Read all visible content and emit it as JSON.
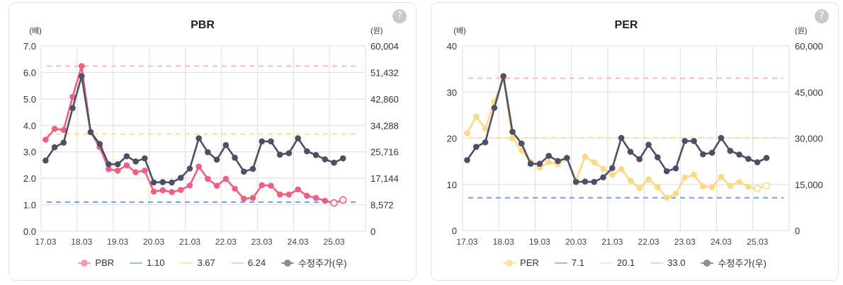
{
  "chart_data": [
    {
      "type": "line",
      "title": "PBR",
      "left_axis_unit": "(배)",
      "right_axis_unit": "(원)",
      "help_icon": {
        "name": "question-icon",
        "glyph": "?"
      },
      "x_tick_labels": [
        "17.03",
        "18.03",
        "19.03",
        "20.03",
        "21.03",
        "22.03",
        "23.03",
        "24.03",
        "25.03"
      ],
      "x_periods": 36,
      "left_ylim": [
        0,
        7
      ],
      "left_tick_values": [
        0,
        1,
        2,
        3,
        4,
        5,
        6,
        7
      ],
      "left_tick_labels": [
        "0.0",
        "1.0",
        "2.0",
        "3.0",
        "4.0",
        "5.0",
        "6.0",
        "7.0"
      ],
      "right_ylim": [
        0,
        60004
      ],
      "right_tick_values": [
        0,
        8572,
        17144,
        25716,
        34288,
        42860,
        51432,
        60004
      ],
      "right_tick_labels": [
        "0",
        "8,572",
        "17,144",
        "25,716",
        "34,288",
        "42,860",
        "51,432",
        "60,004"
      ],
      "grid": true,
      "legend": "bottom",
      "series": [
        {
          "name": "PBR",
          "axis": "left",
          "color": "#ef5f83",
          "legend_color": "#f59cb2",
          "marker": "circle",
          "hollow_from_index": 32,
          "values": [
            3.46,
            3.87,
            3.83,
            5.08,
            6.24,
            3.75,
            3.18,
            2.35,
            2.29,
            2.49,
            2.23,
            2.29,
            1.5,
            1.55,
            1.48,
            1.56,
            1.73,
            2.44,
            1.98,
            1.72,
            1.98,
            1.61,
            1.23,
            1.26,
            1.74,
            1.72,
            1.39,
            1.39,
            1.58,
            1.34,
            1.26,
            1.15,
            1.07,
            1.18
          ]
        },
        {
          "name": "수정주가(우)",
          "axis": "right",
          "color": "#4d5065",
          "legend_color": "#8b8d9b",
          "marker": "circle",
          "values": [
            22900,
            27200,
            28700,
            39900,
            50200,
            32100,
            28300,
            21700,
            21700,
            24300,
            22600,
            23600,
            15800,
            15900,
            15800,
            17300,
            20300,
            30100,
            25600,
            23200,
            27900,
            23800,
            19300,
            20200,
            29100,
            29100,
            24800,
            25300,
            30100,
            25900,
            24700,
            23300,
            22200,
            23600
          ]
        }
      ],
      "reference_lines": [
        {
          "label": "1.10",
          "value": 1.1,
          "color": "#78a0f2",
          "legend_color": "#9cb9f5"
        },
        {
          "label": "3.67",
          "value": 3.67,
          "color": "#fde0a0",
          "legend_color": "#fde8b8"
        },
        {
          "label": "6.24",
          "value": 6.24,
          "color": "#f7bccd",
          "legend_color": "#f8cdd9"
        }
      ]
    },
    {
      "type": "line",
      "title": "PER",
      "left_axis_unit": "(배)",
      "right_axis_unit": "(원)",
      "help_icon": {
        "name": "question-icon",
        "glyph": "?"
      },
      "x_tick_labels": [
        "17.03",
        "18.03",
        "19.03",
        "20.03",
        "21.03",
        "22.03",
        "23.03",
        "24.03",
        "25.03"
      ],
      "x_periods": 36,
      "left_ylim": [
        0,
        40
      ],
      "left_tick_values": [
        0,
        10,
        20,
        30,
        40
      ],
      "left_tick_labels": [
        "0",
        "10",
        "20",
        "30",
        "40"
      ],
      "right_ylim": [
        0,
        60000
      ],
      "right_tick_values": [
        0,
        15000,
        30000,
        45000,
        60000
      ],
      "right_tick_labels": [
        "0",
        "15,000",
        "30,000",
        "45,000",
        "60,000"
      ],
      "grid": true,
      "legend": "bottom",
      "series": [
        {
          "name": "PER",
          "axis": "left",
          "color": "#fcd985",
          "legend_color": "#fde2a6",
          "marker": "circle",
          "hollow_from_index": 32,
          "values": [
            21.1,
            24.7,
            22.1,
            27.9,
            33.0,
            20.0,
            17.4,
            14.9,
            13.6,
            14.8,
            14.4,
            15.7,
            10.8,
            16.0,
            14.8,
            13.4,
            12.1,
            13.3,
            10.8,
            9.2,
            11.1,
            9.4,
            7.1,
            8.0,
            11.5,
            12.1,
            9.6,
            9.4,
            11.6,
            9.7,
            10.5,
            9.5,
            9.1,
            9.7
          ]
        },
        {
          "name": "수정주가(우)",
          "axis": "right",
          "color": "#4d5065",
          "legend_color": "#8b8d9b",
          "marker": "circle",
          "values": [
            22900,
            27200,
            28700,
            39900,
            50200,
            32100,
            28300,
            21700,
            21700,
            24300,
            22600,
            23600,
            15800,
            15900,
            15800,
            17300,
            20300,
            30100,
            25600,
            23200,
            27900,
            23800,
            19300,
            20200,
            29100,
            29100,
            24800,
            25300,
            30100,
            25900,
            24700,
            23300,
            22200,
            23600
          ]
        }
      ],
      "reference_lines": [
        {
          "label": "7.1",
          "value": 7.1,
          "color": "#78a0f2",
          "legend_color": "#9cb9f5"
        },
        {
          "label": "20.1",
          "value": 20.1,
          "color": "#fde0a0",
          "legend_color": "#fde8b8"
        },
        {
          "label": "33.0",
          "value": 33.0,
          "color": "#f7bccd",
          "legend_color": "#f8cdd9"
        }
      ]
    }
  ]
}
